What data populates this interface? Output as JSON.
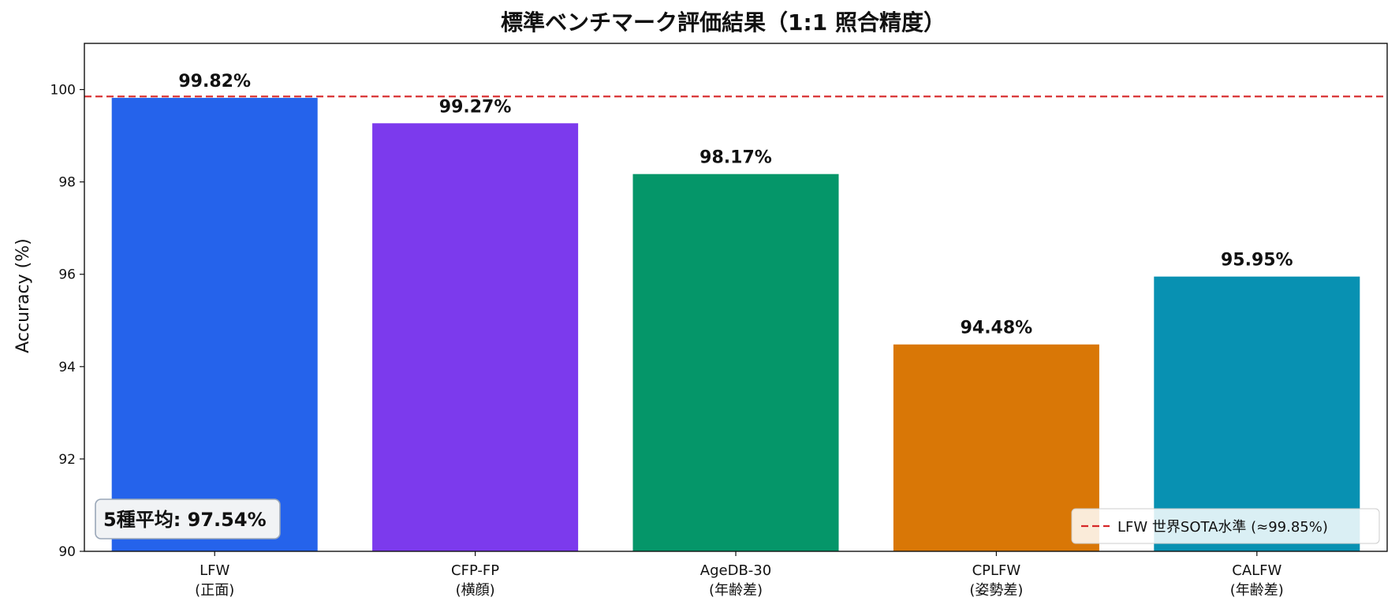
{
  "chart_data": {
    "type": "bar",
    "title": "標準ベンチマーク評価結果（1:1 照合精度）",
    "ylabel": "Accuracy (%)",
    "xlabel": "",
    "ylim": [
      90,
      101
    ],
    "yticks": [
      90,
      92,
      94,
      96,
      98,
      100
    ],
    "categories": [
      [
        "LFW",
        "(正面)"
      ],
      [
        "CFP-FP",
        "(横顔)"
      ],
      [
        "AgeDB-30",
        "(年齢差)"
      ],
      [
        "CPLFW",
        "(姿勢差)"
      ],
      [
        "CALFW",
        "(年齢差)"
      ]
    ],
    "values": [
      99.82,
      99.27,
      98.17,
      94.48,
      95.95
    ],
    "value_labels": [
      "99.82%",
      "99.27%",
      "98.17%",
      "94.48%",
      "95.95%"
    ],
    "colors": [
      "#2563eb",
      "#7c3aed",
      "#059669",
      "#d97706",
      "#0891b2"
    ],
    "reference_line": {
      "value": 99.85,
      "label": "LFW 世界SOTA水準 (≈99.85%)",
      "color": "#d62728",
      "style": "dashed"
    },
    "legend_position": "bottom-right",
    "annotation": "5種平均: 97.54%",
    "grid": false
  }
}
